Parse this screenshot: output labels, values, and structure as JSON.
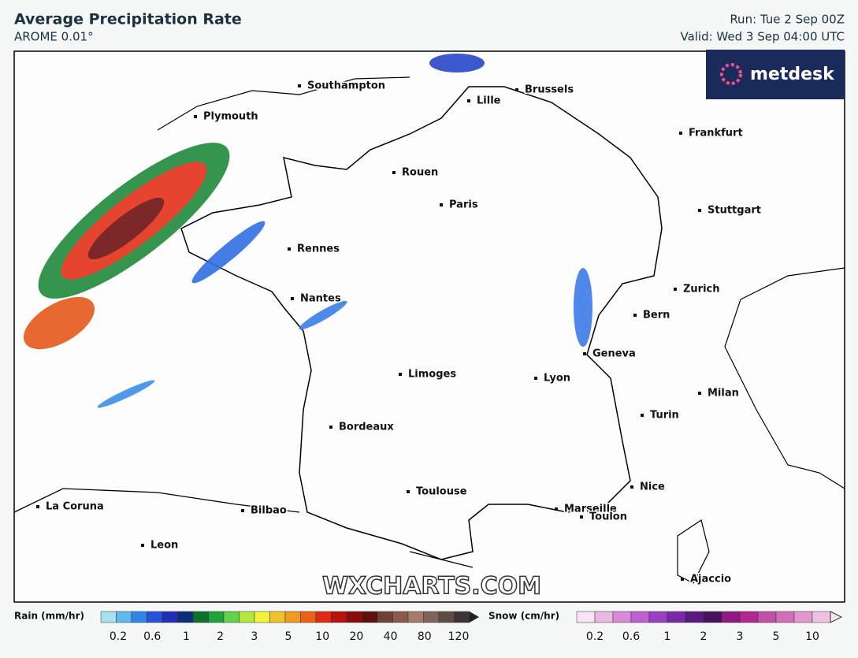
{
  "header": {
    "title": "Average Precipitation Rate",
    "subtitle": "AROME 0.01°",
    "run": "Run: Tue 2 Sep 00Z",
    "valid": "Valid: Wed 3 Sep 04:00 UTC"
  },
  "brand": "metdesk",
  "watermark": "WXCHARTS.COM",
  "cities": [
    "Southampton",
    "Brussels",
    "Lille",
    "Plymouth",
    "Frankfurt",
    "Rouen",
    "Paris",
    "Stuttgart",
    "Rennes",
    "Zurich",
    "Nantes",
    "Bern",
    "Geneva",
    "Limoges",
    "Lyon",
    "Milan",
    "Turin",
    "Bordeaux",
    "Nice",
    "Toulouse",
    "La Coruna",
    "Marseille",
    "Toulon",
    "Bilbao",
    "Leon",
    "Ajaccio"
  ],
  "legend": {
    "rain": {
      "label": "Rain (mm/hr)",
      "ticks": [
        "0.2",
        "0.6",
        "1",
        "2",
        "3",
        "5",
        "10",
        "20",
        "40",
        "80",
        "120"
      ]
    },
    "snow": {
      "label": "Snow (cm/hr)",
      "ticks": [
        "0.2",
        "0.6",
        "1",
        "2",
        "3",
        "5",
        "10"
      ]
    }
  }
}
